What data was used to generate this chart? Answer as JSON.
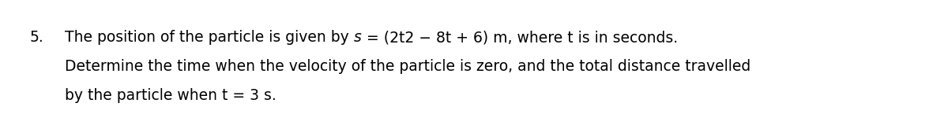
{
  "number": "5.",
  "line1_before_s": "The position of the particle is given by ",
  "line1_s": "s",
  "line1_after_s": " = (2t2 − 8t + 6) m, where t is in seconds.",
  "line2": "Determine the time when the velocity of the particle is zero, and the total distance travelled",
  "line3": "by the particle when t = 3 s.",
  "bg_color": "#ffffff",
  "text_color": "#000000",
  "fontsize": 13.5,
  "figsize": [
    12.0,
    1.78
  ],
  "dpi": 100
}
